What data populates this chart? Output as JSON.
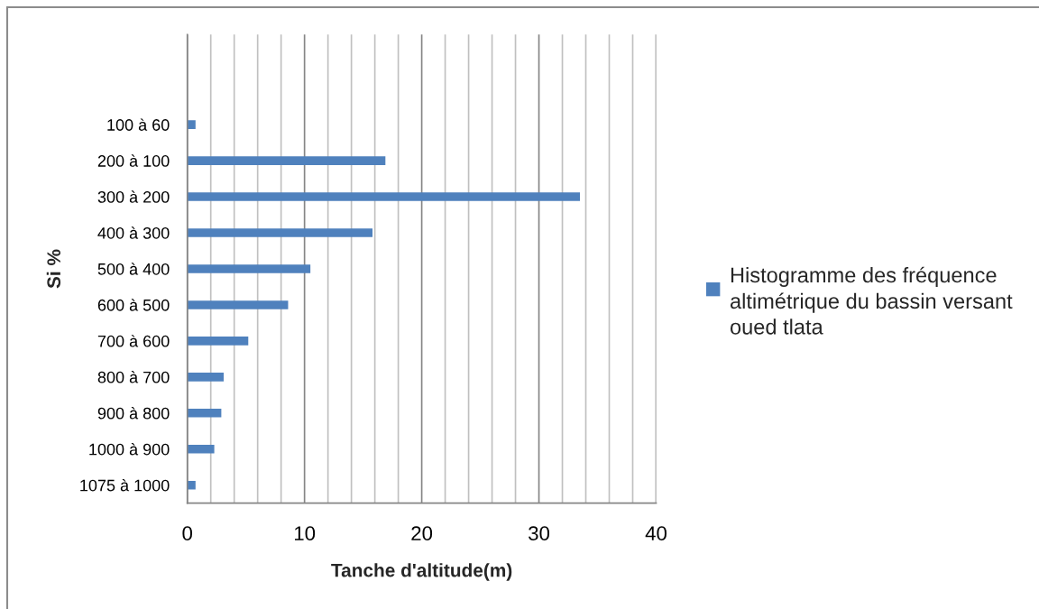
{
  "chart_data": {
    "type": "bar",
    "orientation": "horizontal",
    "xlabel": "Tanche d'altitude(m)",
    "ylabel": "Si %",
    "categories": [
      null,
      null,
      "100 à 60",
      "200 à 100",
      "300 à 200",
      "400 à 300",
      "500 à 400",
      "600 à 500",
      "700 à 600",
      "800 à 700",
      "900 à 800",
      "1000 à 900",
      "1075 à 1000"
    ],
    "series": [
      {
        "name": "Histogramme des fréquence\naltimétrique du bassin versant\noued tlata",
        "color": "#4f81bd",
        "values": [
          null,
          null,
          0.7,
          16.9,
          33.5,
          15.8,
          10.5,
          8.6,
          5.2,
          3.1,
          2.9,
          2.3,
          0.7
        ]
      }
    ],
    "xlim": [
      0,
      40
    ],
    "xticks": [
      0,
      {
        "value": 2,
        "label": null
      },
      {
        "value": 4,
        "label": null
      },
      {
        "value": 6,
        "label": null
      },
      {
        "value": 8,
        "label": null
      },
      10,
      {
        "value": 12,
        "label": null
      },
      {
        "value": 14,
        "label": null
      },
      {
        "value": 16,
        "label": null
      },
      {
        "value": 18,
        "label": null
      },
      20,
      {
        "value": 22,
        "label": null
      },
      {
        "value": 24,
        "label": null
      },
      {
        "value": 26,
        "label": null
      },
      {
        "value": 28,
        "label": null
      },
      30,
      {
        "value": 32,
        "label": null
      },
      {
        "value": 34,
        "label": null
      },
      {
        "value": 36,
        "label": null
      },
      {
        "value": 38,
        "label": null
      },
      40
    ],
    "grid": "x",
    "legend": "right"
  }
}
